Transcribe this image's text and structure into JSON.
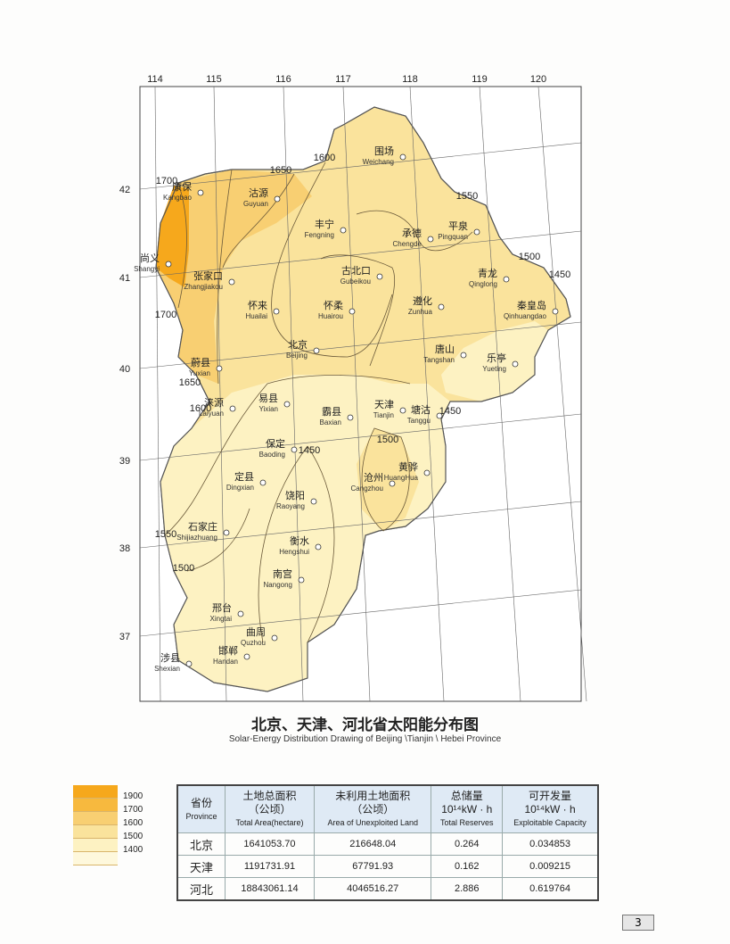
{
  "map": {
    "longitudes": [
      "114",
      "115",
      "116",
      "117",
      "118",
      "119",
      "120"
    ],
    "latitudes": [
      "42",
      "41",
      "40",
      "39",
      "38",
      "37"
    ],
    "contour_labels": [
      "1700",
      "1650",
      "1600",
      "1550",
      "1500",
      "1450",
      "1700",
      "1650",
      "1600",
      "1450",
      "1500",
      "1450",
      "1550",
      "1500"
    ],
    "cities": [
      {
        "cn": "围场",
        "en": "Weichang"
      },
      {
        "cn": "康保",
        "en": "Kangbao"
      },
      {
        "cn": "沽源",
        "en": "Guyuan"
      },
      {
        "cn": "丰宁",
        "en": "Fengning"
      },
      {
        "cn": "承德",
        "en": "Chengde"
      },
      {
        "cn": "平泉",
        "en": "Pingquan"
      },
      {
        "cn": "尚义",
        "en": "Shangyi"
      },
      {
        "cn": "张家口",
        "en": "Zhangjiakou"
      },
      {
        "cn": "古北口",
        "en": "Gubeikou"
      },
      {
        "cn": "青龙",
        "en": "Qinglong"
      },
      {
        "cn": "怀来",
        "en": "Huailai"
      },
      {
        "cn": "怀柔",
        "en": "Huairou"
      },
      {
        "cn": "遵化",
        "en": "Zunhua"
      },
      {
        "cn": "秦皇岛",
        "en": "Qinhuangdao"
      },
      {
        "cn": "北京",
        "en": "Beijing"
      },
      {
        "cn": "唐山",
        "en": "Tangshan"
      },
      {
        "cn": "乐亭",
        "en": "Yueting"
      },
      {
        "cn": "蔚县",
        "en": "Yuxian"
      },
      {
        "cn": "易县",
        "en": "Yixian"
      },
      {
        "cn": "天津",
        "en": "Tianjin"
      },
      {
        "cn": "霸县",
        "en": "Baxian"
      },
      {
        "cn": "涞源",
        "en": "Laiyuan"
      },
      {
        "cn": "塘沽",
        "en": "Tanggu"
      },
      {
        "cn": "保定",
        "en": "Baoding"
      },
      {
        "cn": "定县",
        "en": "Dingxian"
      },
      {
        "cn": "沧州",
        "en": "Cangzhou"
      },
      {
        "cn": "黄骅",
        "en": "HuangHua"
      },
      {
        "cn": "饶阳",
        "en": "Raoyang"
      },
      {
        "cn": "石家庄",
        "en": "Shijiazhuang"
      },
      {
        "cn": "衡水",
        "en": "Hengshui"
      },
      {
        "cn": "南宫",
        "en": "Nangong"
      },
      {
        "cn": "邢台",
        "en": "Xingtai"
      },
      {
        "cn": "曲周",
        "en": "Quzhou"
      },
      {
        "cn": "涉县",
        "en": "Shexian"
      },
      {
        "cn": "邯郸",
        "en": "Handan"
      }
    ],
    "colors": {
      "c1900": "#f6a81c",
      "c1700": "#f7b93e",
      "c1600": "#f8cf72",
      "c1500": "#fae39c",
      "c1400": "#fdf2c2"
    }
  },
  "title": "北京、天津、河北省太阳能分布图",
  "subtitle": "Solar-Energy Distribution Drawing of Beijing \\Tianjin \\ Hebei Province",
  "legend": [
    "1900",
    "1700",
    "1600",
    "1500",
    "1400"
  ],
  "table": {
    "headers": [
      {
        "cn": "省份",
        "en": "Province"
      },
      {
        "cn": "土地总面积",
        "unit": "（公顷）",
        "en": "Total Area(hectare)"
      },
      {
        "cn": "未利用土地面积",
        "unit": "（公顷）",
        "en": "Area of Unexploited Land"
      },
      {
        "cn": "总储量",
        "unit": "10¹⁴kW · h",
        "en": "Total Reserves"
      },
      {
        "cn": "可开发量",
        "unit": "10¹⁴kW · h",
        "en": "Exploitable Capacity"
      }
    ],
    "rows": [
      [
        "北京",
        "1641053.70",
        "216648.04",
        "0.264",
        "0.034853"
      ],
      [
        "天津",
        "1191731.91",
        "67791.93",
        "0.162",
        "0.009215"
      ],
      [
        "河北",
        "18843061.14",
        "4046516.27",
        "2.886",
        "0.619764"
      ]
    ]
  },
  "page_number": "3"
}
